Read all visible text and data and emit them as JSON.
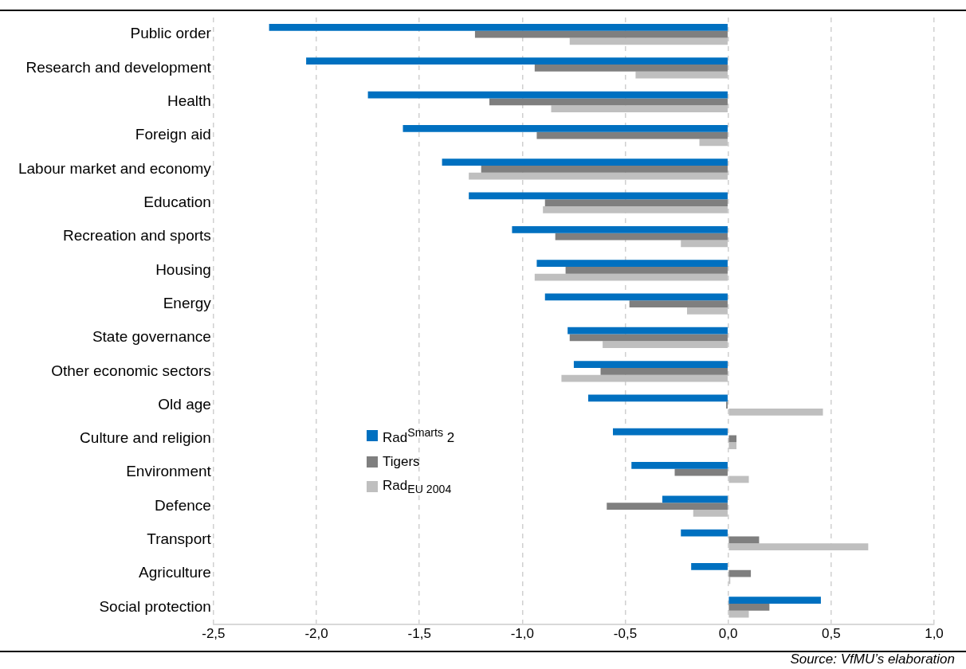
{
  "chart_data": {
    "type": "bar",
    "orientation": "horizontal",
    "categories": [
      "Public order",
      "Research and development",
      "Health",
      "Foreign aid",
      "Labour market and economy",
      "Education",
      "Recreation and sports",
      "Housing",
      "Energy",
      "State governance",
      "Other economic sectors",
      "Old age",
      "Culture and religion",
      "Environment",
      "Defence",
      "Transport",
      "Agriculture",
      "Social protection"
    ],
    "series": [
      {
        "name": "Rad$^{Smarts}$ 2",
        "color": "#0070c0",
        "values": [
          -2.23,
          -2.05,
          -1.75,
          -1.58,
          -1.39,
          -1.26,
          -1.05,
          -0.93,
          -0.89,
          -0.78,
          -0.75,
          -0.68,
          -0.56,
          -0.47,
          -0.32,
          -0.23,
          -0.18,
          0.45
        ]
      },
      {
        "name": "Tigers",
        "color": "#7f7f7f",
        "values": [
          -1.23,
          -0.94,
          -1.16,
          -0.93,
          -1.2,
          -0.89,
          -0.84,
          -0.79,
          -0.48,
          -0.77,
          -0.62,
          -0.01,
          0.04,
          -0.26,
          -0.59,
          0.15,
          0.11,
          0.2
        ]
      },
      {
        "name": "Rad$_{EU 2004}$",
        "color": "#bfbfbf",
        "values": [
          -0.77,
          -0.45,
          -0.86,
          -0.14,
          -1.26,
          -0.9,
          -0.23,
          -0.94,
          -0.2,
          -0.61,
          -0.81,
          0.46,
          0.04,
          0.1,
          -0.17,
          0.68,
          0.01,
          0.1
        ]
      }
    ],
    "xlim": [
      -2.5,
      1.0
    ],
    "xticks": [
      {
        "value": -2.5,
        "label": "-2,5"
      },
      {
        "value": -2.0,
        "label": "-2,0"
      },
      {
        "value": -1.5,
        "label": "-1,5"
      },
      {
        "value": -1.0,
        "label": "-1,0"
      },
      {
        "value": -0.5,
        "label": "-0,5"
      },
      {
        "value": 0,
        "label": "0,0"
      },
      {
        "value": 0.5,
        "label": "0,5"
      },
      {
        "value": 1.0,
        "label": "1,0"
      }
    ],
    "grid": "x",
    "legend": "left",
    "annotations": [
      "Source: VfMU’s elaboration"
    ]
  }
}
